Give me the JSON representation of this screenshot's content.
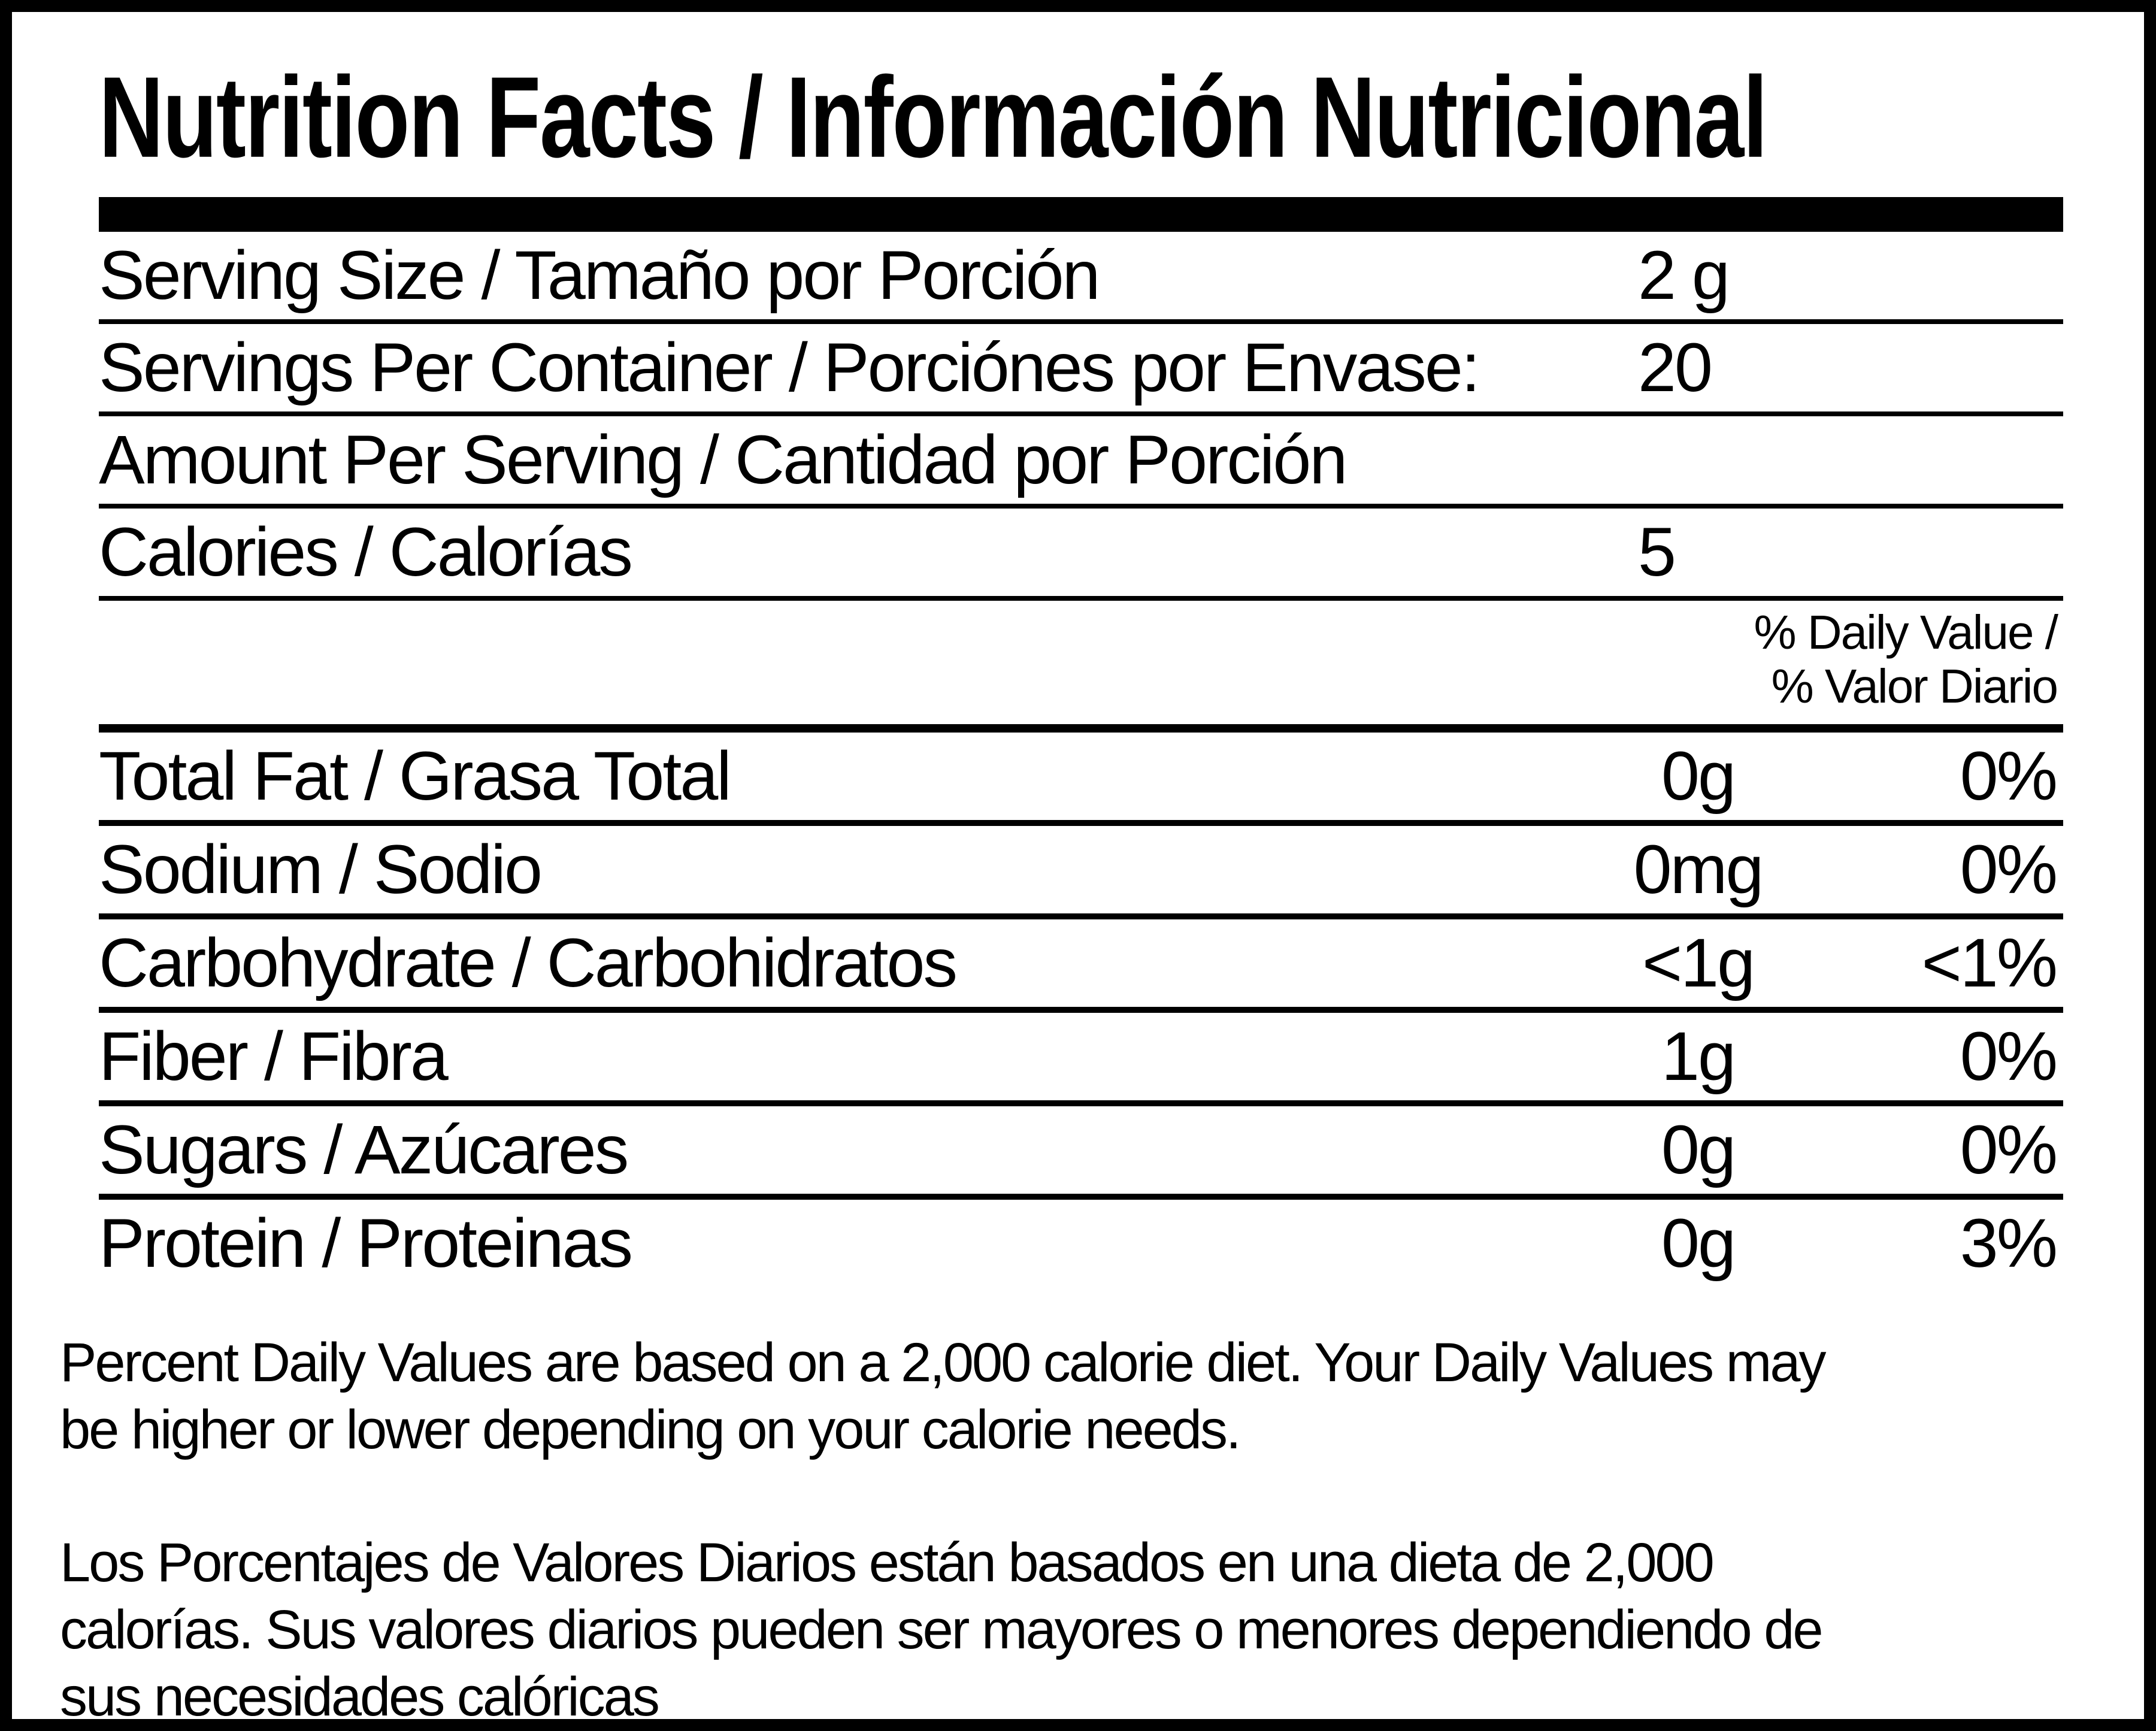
{
  "title": "Nutrition Facts / Información Nutricional",
  "serving_info": [
    {
      "label": "Serving Size / Tamaño por Porción",
      "value": "2 g"
    },
    {
      "label": "Servings Per Container / Porciónes por Envase:",
      "value": "20"
    },
    {
      "label": "Amount Per Serving / Cantidad por Porción",
      "value": ""
    },
    {
      "label": "Calories / Calorías",
      "value": "5"
    }
  ],
  "daily_value_header": {
    "line1": "% Daily Value /",
    "line2": "% Valor Diario"
  },
  "nutrients": [
    {
      "label": "Total Fat / Grasa Total",
      "amount": "0g",
      "percent": "0%"
    },
    {
      "label": "Sodium / Sodio",
      "amount": "0mg",
      "percent": "0%"
    },
    {
      "label": "Carbohydrate / Carbohidratos",
      "amount": "<1g",
      "percent": "<1%"
    },
    {
      "label": "Fiber / Fibra",
      "amount": "1g",
      "percent": "0%"
    },
    {
      "label": "Sugars / Azúcares",
      "amount": "0g",
      "percent": "0%"
    },
    {
      "label": "Protein / Proteinas",
      "amount": "0g",
      "percent": "3%"
    }
  ],
  "footnotes": {
    "english": [
      "Percent Daily Values are based on a 2,000 calorie diet. Your Daily Values may",
      "be higher or lower depending on your calorie needs."
    ],
    "spanish": [
      "Los Porcentajes de Valores Diarios están basados en una dieta de 2,000",
      "calorías. Sus valores diarios pueden ser mayores o menores dependiendo de",
      "sus necesidades calóricas"
    ]
  },
  "colors": {
    "border": "#000000",
    "background": "#ffffff",
    "text": "#000000"
  }
}
